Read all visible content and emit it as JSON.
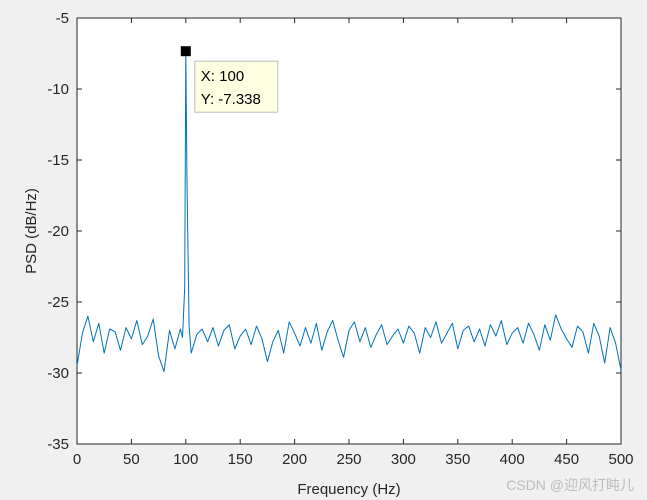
{
  "chart_data": {
    "type": "line",
    "xlabel": "Frequency (Hz)",
    "ylabel": "PSD (dB/Hz)",
    "xlim": [
      0,
      500
    ],
    "ylim": [
      -35,
      -5
    ],
    "xticks": [
      0,
      50,
      100,
      150,
      200,
      250,
      300,
      350,
      400,
      450,
      500
    ],
    "yticks": [
      -5,
      -10,
      -15,
      -20,
      -25,
      -30,
      -35
    ],
    "grid": false,
    "series": [
      {
        "color": "#0072bd",
        "x": [
          0,
          5,
          10,
          15,
          20,
          25,
          30,
          35,
          40,
          45,
          50,
          55,
          60,
          65,
          70,
          75,
          80,
          85,
          90,
          95,
          97,
          99,
          100,
          101,
          103,
          105,
          110,
          115,
          120,
          125,
          130,
          135,
          140,
          145,
          150,
          155,
          160,
          165,
          170,
          175,
          180,
          185,
          190,
          195,
          200,
          205,
          210,
          215,
          220,
          225,
          230,
          235,
          240,
          245,
          250,
          255,
          260,
          265,
          270,
          275,
          280,
          285,
          290,
          295,
          300,
          305,
          310,
          315,
          320,
          325,
          330,
          335,
          340,
          345,
          350,
          355,
          360,
          365,
          370,
          375,
          380,
          385,
          390,
          395,
          400,
          405,
          410,
          415,
          420,
          425,
          430,
          435,
          440,
          445,
          450,
          455,
          460,
          465,
          470,
          475,
          480,
          485,
          490,
          495,
          500
        ],
        "y": [
          -29.5,
          -27.2,
          -26.0,
          -27.8,
          -26.5,
          -28.6,
          -26.9,
          -27.1,
          -28.4,
          -26.8,
          -27.6,
          -26.3,
          -28.0,
          -27.4,
          -26.2,
          -28.8,
          -29.9,
          -27.0,
          -28.3,
          -26.9,
          -27.5,
          -24.0,
          -7.338,
          -16.0,
          -26.7,
          -28.6,
          -27.3,
          -26.9,
          -27.8,
          -26.8,
          -28.1,
          -27.0,
          -26.6,
          -28.3,
          -27.4,
          -26.9,
          -28.0,
          -26.7,
          -27.6,
          -29.2,
          -27.8,
          -27.0,
          -28.6,
          -26.4,
          -27.2,
          -28.1,
          -26.8,
          -27.9,
          -26.5,
          -28.4,
          -27.1,
          -26.3,
          -27.7,
          -28.9,
          -27.0,
          -26.4,
          -27.8,
          -26.8,
          -28.2,
          -27.3,
          -26.6,
          -28.0,
          -27.4,
          -26.9,
          -27.9,
          -26.7,
          -27.2,
          -28.6,
          -26.8,
          -27.5,
          -26.4,
          -27.9,
          -27.2,
          -26.5,
          -28.3,
          -27.0,
          -26.7,
          -27.8,
          -26.9,
          -28.1,
          -26.6,
          -27.4,
          -26.3,
          -28.0,
          -27.2,
          -26.8,
          -27.9,
          -26.5,
          -27.3,
          -28.4,
          -26.6,
          -27.7,
          -25.9,
          -26.9,
          -27.6,
          -28.2,
          -26.7,
          -27.1,
          -28.6,
          -26.5,
          -27.4,
          -29.3,
          -26.8,
          -27.9,
          -29.8
        ]
      }
    ],
    "datatip": {
      "x": 100,
      "y": -7.338,
      "x_label": "X: 100",
      "y_label": "Y: -7.338"
    }
  },
  "watermark": "CSDN @迎风打盹儿"
}
